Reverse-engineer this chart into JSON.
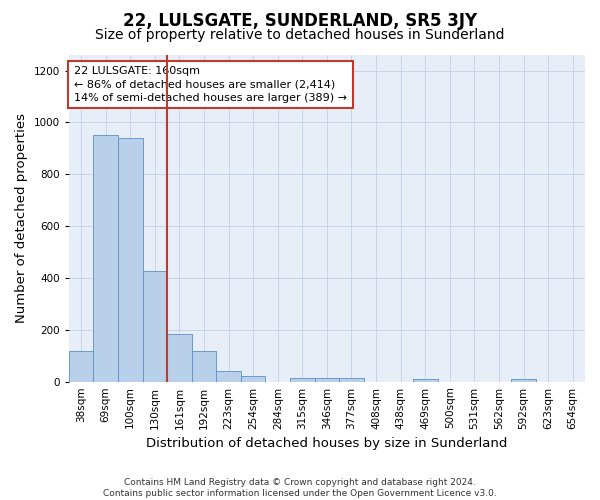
{
  "title": "22, LULSGATE, SUNDERLAND, SR5 3JY",
  "subtitle": "Size of property relative to detached houses in Sunderland",
  "xlabel": "Distribution of detached houses by size in Sunderland",
  "ylabel": "Number of detached properties",
  "categories": [
    "38sqm",
    "69sqm",
    "100sqm",
    "130sqm",
    "161sqm",
    "192sqm",
    "223sqm",
    "254sqm",
    "284sqm",
    "315sqm",
    "346sqm",
    "377sqm",
    "408sqm",
    "438sqm",
    "469sqm",
    "500sqm",
    "531sqm",
    "562sqm",
    "592sqm",
    "623sqm",
    "654sqm"
  ],
  "values": [
    120,
    950,
    940,
    425,
    183,
    120,
    43,
    20,
    0,
    13,
    13,
    13,
    0,
    0,
    10,
    0,
    0,
    0,
    10,
    0,
    0
  ],
  "bar_color": "#b8d0ea",
  "bar_edge_color": "#5b8fc9",
  "vline_x_idx": 4,
  "vline_color": "#c0392b",
  "annotation_line1": "22 LULSGATE: 160sqm",
  "annotation_line2": "← 86% of detached houses are smaller (2,414)",
  "annotation_line3": "14% of semi-detached houses are larger (389) →",
  "annotation_box_color": "#ffffff",
  "annotation_box_edge_color": "#c0392b",
  "ylim": [
    0,
    1260
  ],
  "yticks": [
    0,
    200,
    400,
    600,
    800,
    1000,
    1200
  ],
  "grid_color": "#c8d4e8",
  "bg_color": "#e8eef8",
  "footer": "Contains HM Land Registry data © Crown copyright and database right 2024.\nContains public sector information licensed under the Open Government Licence v3.0.",
  "title_fontsize": 12,
  "subtitle_fontsize": 10,
  "axis_label_fontsize": 9.5,
  "tick_fontsize": 7.5,
  "annotation_fontsize": 8,
  "footer_fontsize": 6.5
}
